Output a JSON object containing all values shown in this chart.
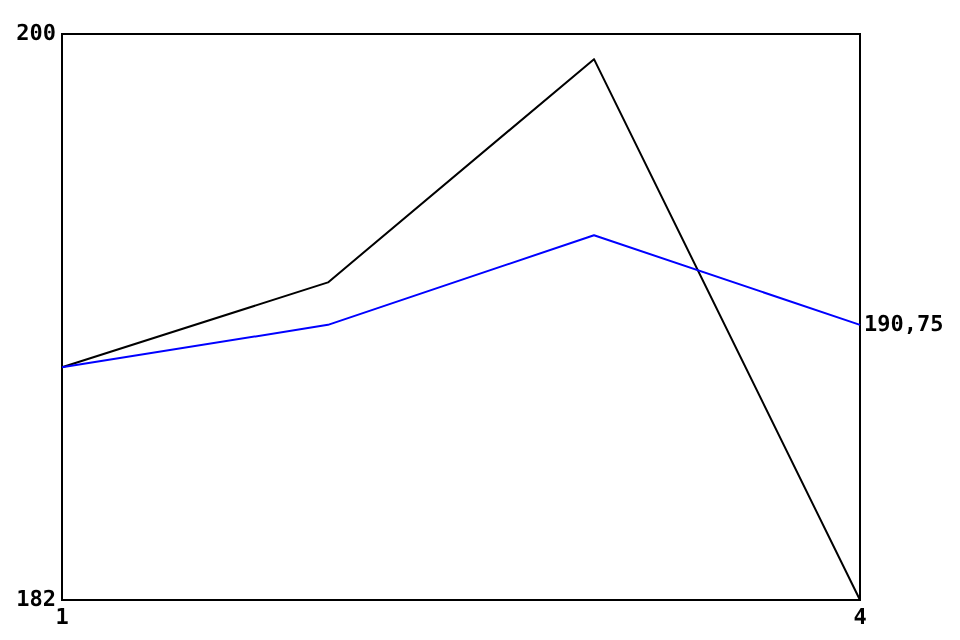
{
  "chart_data": {
    "type": "line",
    "x": [
      1,
      2,
      3,
      4
    ],
    "xlim": [
      1,
      4
    ],
    "xticks": [
      1,
      4
    ],
    "ylim": [
      182,
      200
    ],
    "yticks": [
      182,
      200
    ],
    "marker": "none",
    "series": [
      {
        "color": "#000000",
        "values": [
          189.4,
          192.1,
          199.2,
          182
        ]
      },
      {
        "color": "#0000ff",
        "values": [
          189.4,
          190.75,
          193.6,
          190.75
        ]
      }
    ],
    "annotations": [
      {
        "text": "190,75",
        "x": 4,
        "y": 190.75
      }
    ]
  }
}
